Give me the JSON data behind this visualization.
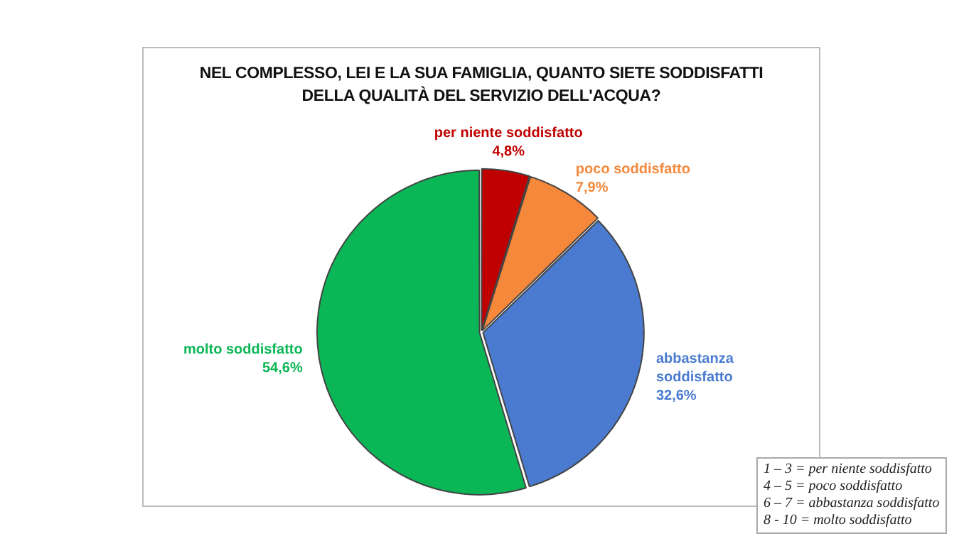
{
  "chart_data": {
    "type": "pie",
    "title": "NEL COMPLESSO, LEI E LA SUA FAMIGLIA, QUANTO SIETE SODDISFATTI DELLA QUALITÀ DEL SERVIZIO DELL'ACQUA?",
    "categories": [
      "per niente soddisfatto",
      "poco soddisfatto",
      "abbastanza soddisfatto",
      "molto soddisfatto"
    ],
    "values": [
      4.8,
      7.9,
      32.6,
      54.6
    ],
    "colors": [
      "#c00000",
      "#f5883b",
      "#4a7bd0",
      "#0ab655"
    ],
    "value_labels": [
      "4,8%",
      "7,9%",
      "32,6%",
      "54,6%"
    ],
    "legend": false,
    "annotations": [
      "1 – 3 = per niente soddisfatto",
      "4 – 5 = poco soddisfatto",
      "6 – 7 = abbastanza soddisfatto",
      "8 - 10 = molto soddisfatto"
    ]
  }
}
